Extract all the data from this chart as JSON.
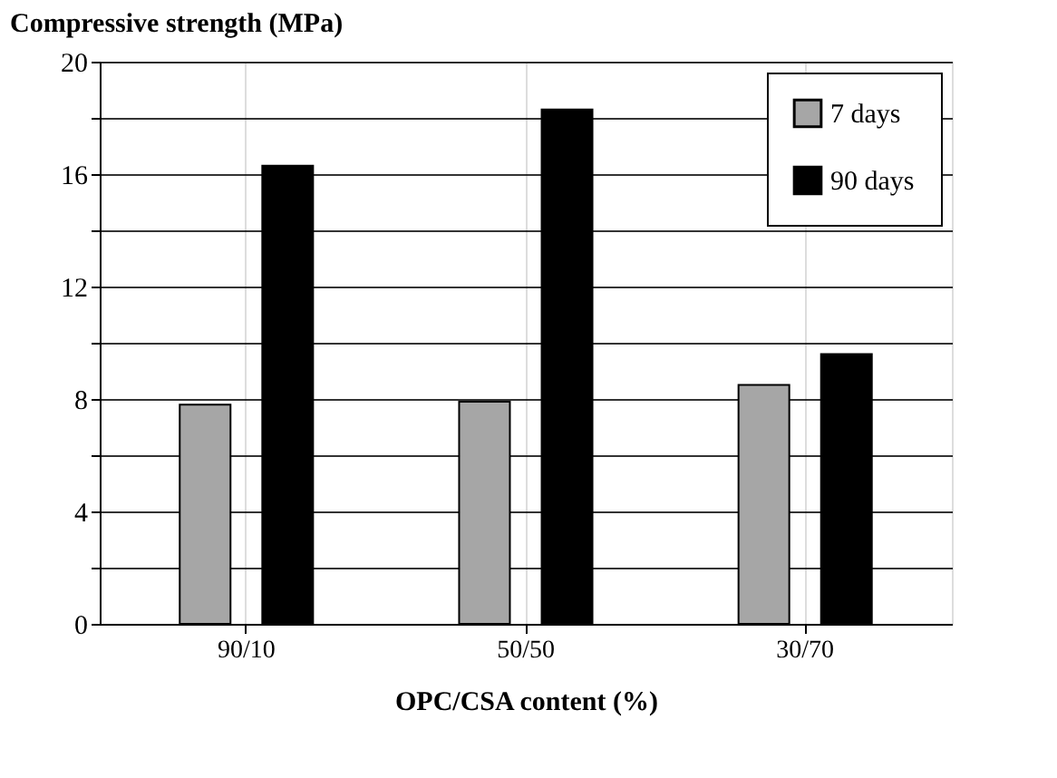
{
  "chart_data": {
    "type": "bar",
    "xlabel": "OPC/CSA content (%)",
    "ylabel": "Compressive strength (MPa)",
    "categories": [
      "90/10",
      "50/50",
      "30/70"
    ],
    "series": [
      {
        "name": "7 days",
        "color": "#a6a6a6",
        "values": [
          7.8,
          7.9,
          8.5
        ]
      },
      {
        "name": "90 days",
        "color": "#000000",
        "values": [
          16.3,
          18.3,
          9.6
        ]
      }
    ],
    "ylim": [
      0,
      20
    ],
    "yticks": [
      0,
      {
        "value": 2,
        "label": null
      },
      4,
      {
        "value": 6,
        "label": null
      },
      8,
      {
        "value": 10,
        "label": null
      },
      12,
      {
        "value": 14,
        "label": null
      },
      16,
      {
        "value": 18,
        "label": null
      },
      20
    ],
    "grid": true,
    "legend": "top right"
  }
}
